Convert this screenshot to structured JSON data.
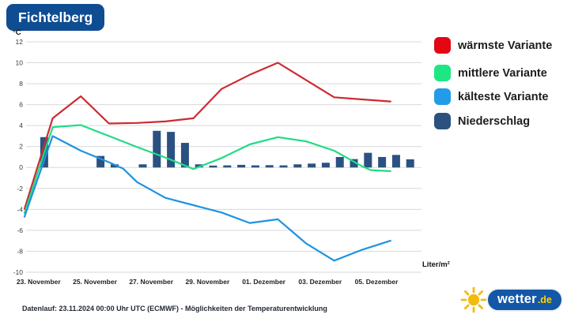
{
  "header": {
    "title": "Fichtelberg"
  },
  "footer": {
    "text": "Datenlauf: 23.11.2024 00:00 Uhr UTC (ECMWF) - Möglichkeiten der Temperaturentwicklung"
  },
  "logo": {
    "text_main": "wetter",
    "text_suffix": ".de",
    "sun_color": "#f2bb0d",
    "pill_color": "#1457a6"
  },
  "chart_data": {
    "type": "line+bar",
    "title": "Fichtelberg",
    "grid": "horizontal-only",
    "grid_color": "#d9d9d9",
    "legend_position": "right",
    "y_axis": {
      "label": "°C",
      "min": -10,
      "max": 12,
      "step": 2,
      "ticks": [
        12,
        10,
        8,
        6,
        4,
        2,
        0,
        -2,
        -4,
        -6,
        -8,
        -10
      ]
    },
    "x_axis": {
      "tick_labels": [
        "23. November",
        "25. November",
        "27. November",
        "29. November",
        "01. Dezember",
        "03. Dezember",
        "05. Dezember"
      ],
      "tick_positions_days": [
        0.5,
        2.5,
        4.5,
        6.5,
        8.5,
        10.5,
        12.5
      ],
      "range_days": [
        0,
        14.1
      ],
      "origin_label": "23.11.2024 00:00 UTC"
    },
    "series": [
      {
        "name": "wärmste Variante",
        "line_color": "#cd2a30",
        "swatch_color": "#e30613",
        "points": [
          [
            0,
            -3.95
          ],
          [
            1,
            4.7
          ],
          [
            2,
            6.8
          ],
          [
            3,
            4.2
          ],
          [
            4,
            4.25
          ],
          [
            5,
            4.4
          ],
          [
            6,
            4.7
          ],
          [
            7,
            7.5
          ],
          [
            8,
            8.85
          ],
          [
            9,
            10.0
          ],
          [
            10,
            8.35
          ],
          [
            11,
            6.7
          ],
          [
            12,
            6.5
          ],
          [
            13,
            6.3
          ]
        ]
      },
      {
        "name": "mittlere Variante",
        "line_color": "#20dc86",
        "swatch_color": "#1ce783",
        "points": [
          [
            0,
            -4.35
          ],
          [
            1,
            3.85
          ],
          [
            2,
            4.05
          ],
          [
            3,
            3.0
          ],
          [
            4,
            1.95
          ],
          [
            5,
            0.95
          ],
          [
            6,
            -0.15
          ],
          [
            7,
            0.9
          ],
          [
            8,
            2.2
          ],
          [
            9,
            2.9
          ],
          [
            10,
            2.5
          ],
          [
            11,
            1.6
          ],
          [
            12,
            0.1
          ],
          [
            12.3,
            -0.25
          ],
          [
            13,
            -0.35
          ]
        ]
      },
      {
        "name": "kälteste Variante",
        "line_color": "#1e93e0",
        "swatch_color": "#229ce8",
        "points": [
          [
            0,
            -4.7
          ],
          [
            1,
            3.0
          ],
          [
            2,
            1.6
          ],
          [
            3,
            0.5
          ],
          [
            3.5,
            -0.1
          ],
          [
            4,
            -1.4
          ],
          [
            5,
            -2.9
          ],
          [
            6,
            -3.6
          ],
          [
            7,
            -4.3
          ],
          [
            8,
            -5.3
          ],
          [
            9,
            -4.95
          ],
          [
            10,
            -7.25
          ],
          [
            11,
            -8.9
          ],
          [
            12,
            -7.85
          ],
          [
            13,
            -7.0
          ]
        ]
      }
    ],
    "precipitation": {
      "name": "Niederschlag",
      "unit": "Liter/m²",
      "color": "#2b5181",
      "swatch_color": "#2b5181",
      "t_days": [
        0.7,
        1.2,
        1.7,
        2.2,
        2.7,
        3.2,
        3.7,
        4.2,
        4.7,
        5.2,
        5.7,
        6.2,
        6.7,
        7.2,
        7.7,
        8.2,
        8.7,
        9.2,
        9.7,
        10.2,
        10.7,
        11.2,
        11.7,
        12.2,
        12.7,
        13.2,
        13.7
      ],
      "values": [
        2.9,
        0,
        0,
        0,
        1.1,
        0.3,
        0,
        0.3,
        3.5,
        3.4,
        2.35,
        0.3,
        0.18,
        0.2,
        0.25,
        0.2,
        0.22,
        0.2,
        0.3,
        0.37,
        0.45,
        1.0,
        0.8,
        1.4,
        1.0,
        1.2,
        0.78
      ]
    }
  }
}
